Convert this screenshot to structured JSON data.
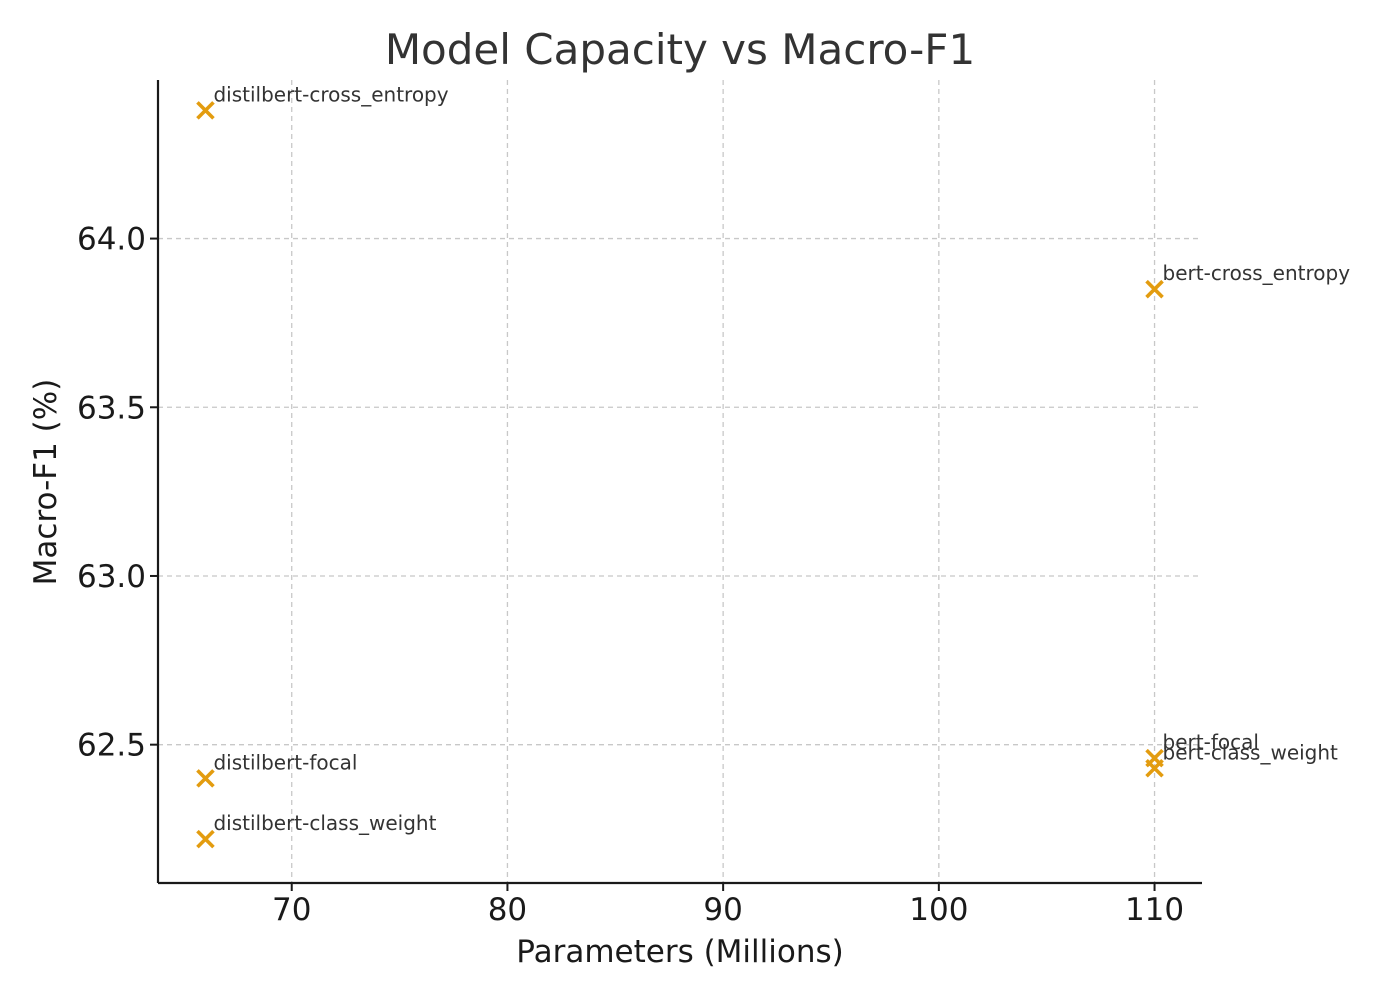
{
  "chart_data": {
    "type": "scatter",
    "title": "Model Capacity vs Macro-F1",
    "xlabel": "Parameters (Millions)",
    "ylabel": "Macro-F1 (%)",
    "xlim": [
      63.8,
      112.2
    ],
    "ylim": [
      62.09,
      64.47
    ],
    "xticks": [
      70,
      80,
      90,
      100,
      110
    ],
    "yticks": [
      62.5,
      63.0,
      63.5,
      64.0
    ],
    "xtick_labels": [
      "70",
      "80",
      "90",
      "100",
      "110"
    ],
    "ytick_labels": [
      "62.5",
      "63.0",
      "63.5",
      "64.0"
    ],
    "grid": true,
    "marker": "x",
    "marker_color": "#e39c0f",
    "points": [
      {
        "label": "distilbert-cross_entropy",
        "x": 66,
        "y": 64.38
      },
      {
        "label": "distilbert-focal",
        "x": 66,
        "y": 62.4
      },
      {
        "label": "distilbert-class_weight",
        "x": 66,
        "y": 62.22
      },
      {
        "label": "bert-cross_entropy",
        "x": 110,
        "y": 63.85
      },
      {
        "label": "bert-focal",
        "x": 110,
        "y": 62.46
      },
      {
        "label": "bert-class_weight",
        "x": 110,
        "y": 62.43
      }
    ]
  }
}
